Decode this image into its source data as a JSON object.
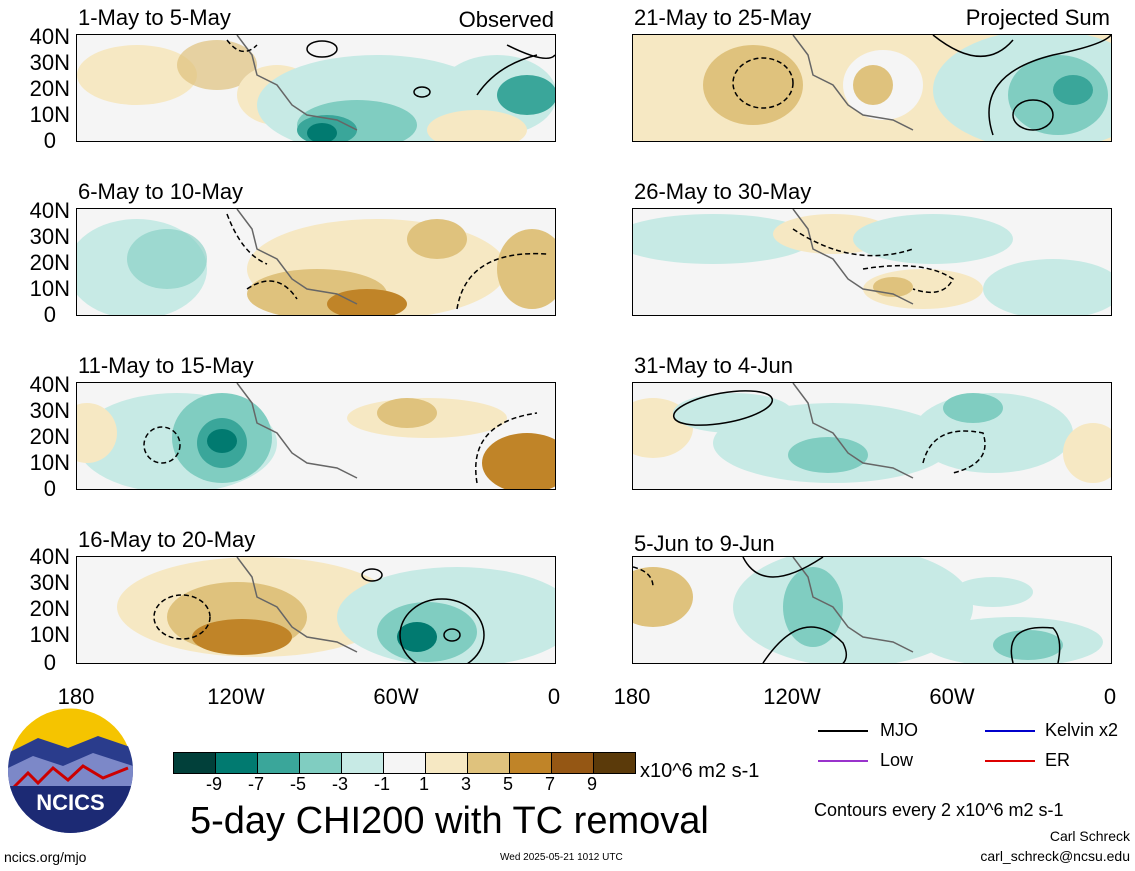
{
  "panels": [
    {
      "title": "1-May to 5-May",
      "tag": "Observed"
    },
    {
      "title": "21-May to 25-May",
      "tag": "Projected Sum"
    },
    {
      "title": "6-May to 10-May",
      "tag": ""
    },
    {
      "title": "26-May to 30-May",
      "tag": ""
    },
    {
      "title": "11-May to 15-May",
      "tag": ""
    },
    {
      "title": "31-May to 4-Jun",
      "tag": ""
    },
    {
      "title": "16-May to 20-May",
      "tag": ""
    },
    {
      "title": "5-Jun to 9-Jun",
      "tag": ""
    }
  ],
  "y_ticks": [
    "40N",
    "30N",
    "20N",
    "10N",
    "0"
  ],
  "x_ticks": [
    "180",
    "120W",
    "60W",
    "0"
  ],
  "colorbar": {
    "colors": [
      "#01403a",
      "#017a70",
      "#3aa69a",
      "#80cdc1",
      "#c7eae5",
      "#f5f5f5",
      "#f6e8c3",
      "#dfc27d",
      "#c08428",
      "#955714",
      "#5b3a0a"
    ],
    "labels": [
      "-9",
      "-7",
      "-5",
      "-3",
      "-1",
      "1",
      "3",
      "5",
      "7",
      "9"
    ],
    "units": "x10^6 m2 s-1"
  },
  "legend": {
    "mjo": "MJO",
    "kelvin": "Kelvin x2",
    "low": "Low",
    "er": "ER",
    "colors": {
      "mjo": "#000000",
      "kelvin": "#0000cc",
      "low": "#9933cc",
      "er": "#dd0000"
    }
  },
  "contours_note": "Contours every 2 x10^6 m2 s-1",
  "main_title": "5-day CHI200 with TC removal",
  "author": "Carl Schreck",
  "email": "carl_schreck@ncsu.edu",
  "website": "ncics.org/mjo",
  "timestamp": "Wed 2025-05-21 1012 UTC",
  "logo_text": "NCICS"
}
